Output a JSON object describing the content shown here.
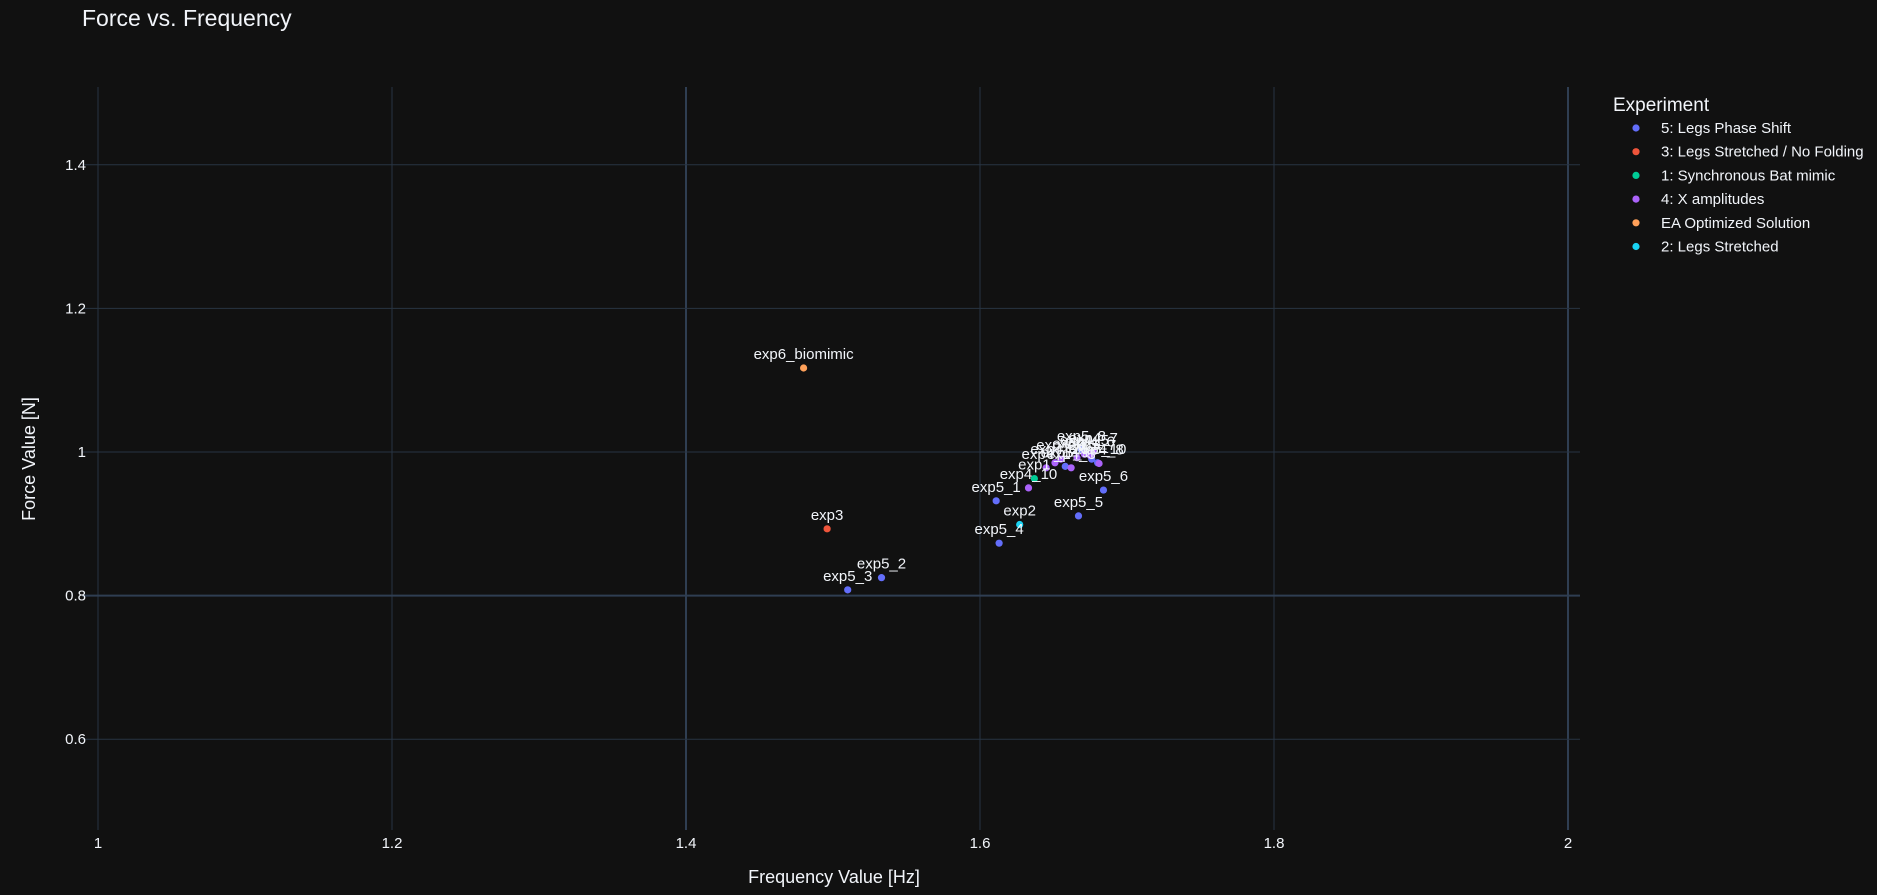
{
  "chart_data": {
    "type": "scatter",
    "title": "Force vs. Frequency",
    "xlabel": "Frequency Value [Hz]",
    "ylabel": "Force Value [N]",
    "xlim": [
      0.995,
      2.005
    ],
    "ylim": [
      0.46,
      1.51
    ],
    "xticks": [
      1,
      1.2,
      1.4,
      1.6,
      1.8,
      2
    ],
    "xtick_labels": [
      "1",
      "1.2",
      "1.4",
      "1.6",
      "1.8",
      "2"
    ],
    "yticks": [
      0.6,
      0.8,
      1,
      1.2,
      1.4
    ],
    "ytick_labels": [
      "0.6",
      "0.8",
      "1",
      "1.2",
      "1.4"
    ],
    "grid": true,
    "legend": {
      "title": "Experiment",
      "position": "right"
    },
    "series": [
      {
        "name": "5: Legs Phase Shift",
        "color": "#636efa",
        "points": [
          {
            "x": 1.611,
            "y": 0.932,
            "label": "exp5_1"
          },
          {
            "x": 1.533,
            "y": 0.825,
            "label": "exp5_2"
          },
          {
            "x": 1.51,
            "y": 0.808,
            "label": "exp5_3"
          },
          {
            "x": 1.613,
            "y": 0.873,
            "label": "exp5_4"
          },
          {
            "x": 1.667,
            "y": 0.911,
            "label": "exp5_5"
          },
          {
            "x": 1.684,
            "y": 0.947,
            "label": "exp5_6"
          },
          {
            "x": 1.676,
            "y": 0.99,
            "label": "exp5_7"
          },
          {
            "x": 1.669,
            "y": 1.003,
            "label": "exp5_8"
          },
          {
            "x": 1.658,
            "y": 0.98,
            "label": "exp5_9"
          },
          {
            "x": 1.68,
            "y": 0.985,
            "label": "exp5_10"
          }
        ]
      },
      {
        "name": "3: Legs Stretched / No Folding",
        "color": "#ef553b",
        "points": [
          {
            "x": 1.496,
            "y": 0.893,
            "label": "exp3"
          }
        ]
      },
      {
        "name": "1: Synchronous Bat mimic",
        "color": "#00cc96",
        "points": [
          {
            "x": 1.637,
            "y": 0.963,
            "label": "exp1"
          }
        ]
      },
      {
        "name": "4: X amplitudes",
        "color": "#ab63fa",
        "points": [
          {
            "x": 1.633,
            "y": 0.95,
            "label": "exp4_10"
          },
          {
            "x": 1.645,
            "y": 0.978,
            "label": "exp4_1"
          },
          {
            "x": 1.651,
            "y": 0.985,
            "label": "exp4_2"
          },
          {
            "x": 1.662,
            "y": 0.978,
            "label": "exp4_3"
          },
          {
            "x": 1.666,
            "y": 0.992,
            "label": "exp4_4"
          },
          {
            "x": 1.671,
            "y": 0.997,
            "label": "exp4_5"
          },
          {
            "x": 1.675,
            "y": 0.995,
            "label": "exp4_6"
          },
          {
            "x": 1.677,
            "y": 1.0,
            "label": "exp4_7"
          },
          {
            "x": 1.681,
            "y": 0.984,
            "label": "exp4_8"
          },
          {
            "x": 1.655,
            "y": 0.99,
            "label": "exp4_9"
          }
        ]
      },
      {
        "name": "EA Optimized Solution",
        "color": "#ffa15a",
        "points": [
          {
            "x": 1.48,
            "y": 1.117,
            "label": "exp6_biomimic"
          }
        ]
      },
      {
        "name": "2: Legs Stretched",
        "color": "#19d3f3",
        "points": [
          {
            "x": 1.627,
            "y": 0.899,
            "label": "exp2"
          }
        ]
      }
    ]
  }
}
